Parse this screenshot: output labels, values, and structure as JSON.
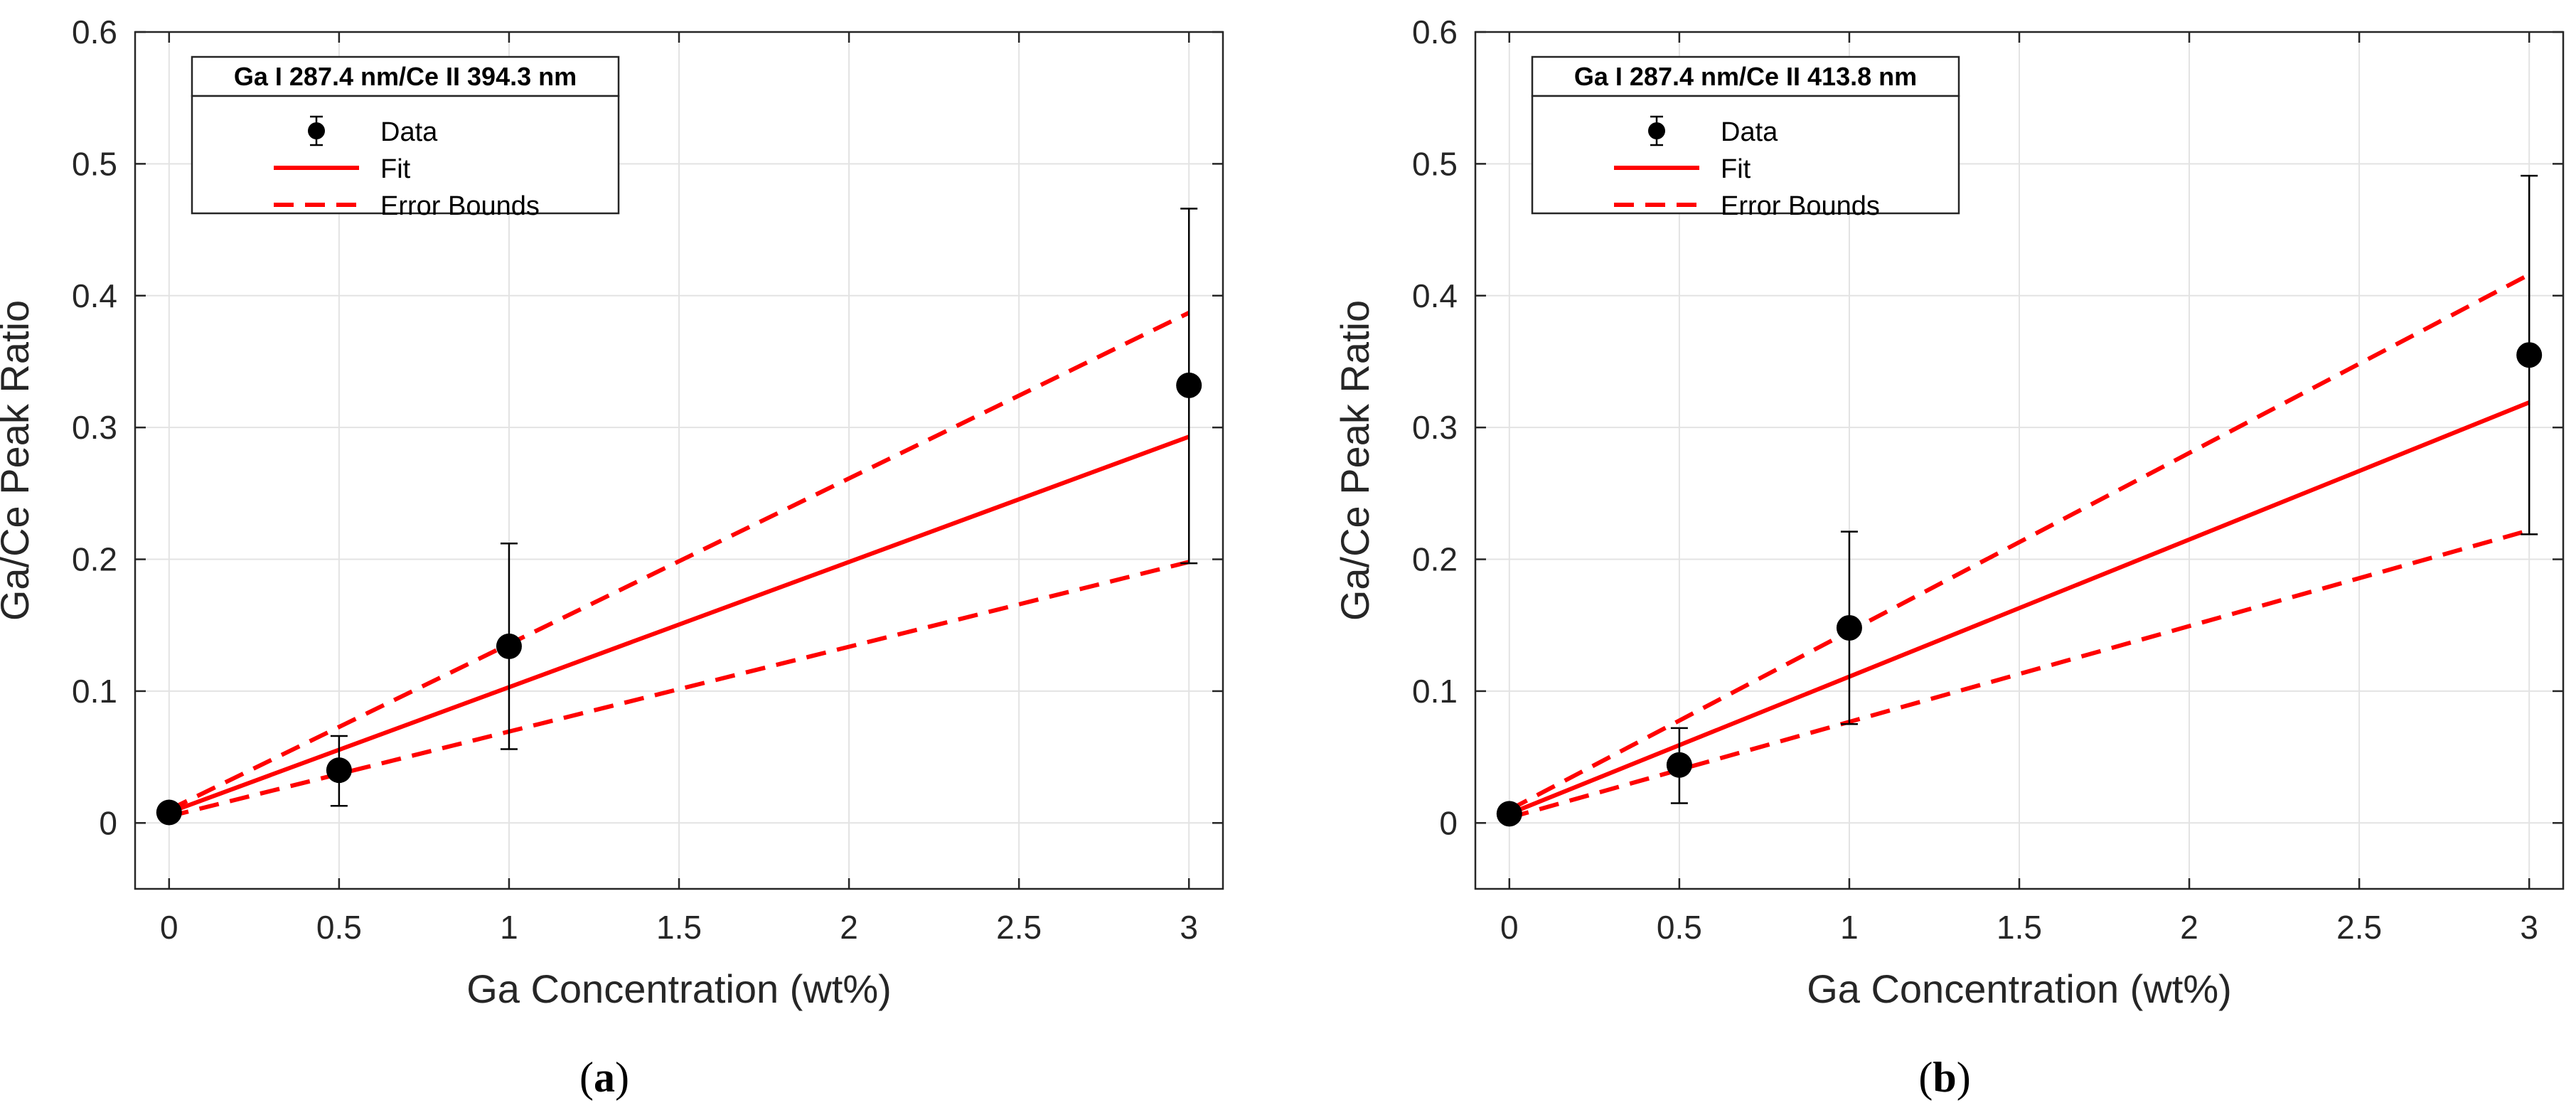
{
  "chart_data": [
    {
      "type": "scatter",
      "panel_label": "a",
      "title": "",
      "xlabel": "Ga Concentration (wt%)",
      "ylabel": "Ga/Ce Peak Ratio",
      "xlim": [
        -0.1,
        3.1
      ],
      "ylim": [
        -0.05,
        0.6
      ],
      "xticks": [
        0,
        0.5,
        1,
        1.5,
        2,
        2.5,
        3
      ],
      "xtick_labels": [
        "0",
        "0.5",
        "1",
        "1.5",
        "2",
        "2.5",
        "3"
      ],
      "yticks": [
        0,
        0.1,
        0.2,
        0.3,
        0.4,
        0.5,
        0.6
      ],
      "ytick_labels": [
        "0",
        "0.1",
        "0.2",
        "0.3",
        "0.4",
        "0.5",
        "0.6"
      ],
      "grid": true,
      "legend": {
        "title": "Ga I 287.4 nm/Ce II 394.3 nm",
        "location": "top-left",
        "entries": [
          "Data",
          "Fit",
          "Error Bounds"
        ]
      },
      "data_points": {
        "name": "Data",
        "x": [
          0,
          0.5,
          1,
          3
        ],
        "y": [
          0.008,
          0.04,
          0.134,
          0.332
        ],
        "err_low": [
          0.008,
          0.013,
          0.056,
          0.197
        ],
        "err_high": [
          0.008,
          0.066,
          0.212,
          0.466
        ]
      },
      "fit": {
        "name": "Fit",
        "x": [
          0,
          3
        ],
        "y": [
          0.008,
          0.293
        ]
      },
      "upper_bound": {
        "name": "Error Bounds",
        "x": [
          0,
          3
        ],
        "y": [
          0.01,
          0.387
        ]
      },
      "lower_bound": {
        "name": "Error Bounds",
        "x": [
          0,
          3
        ],
        "y": [
          0.005,
          0.198
        ]
      }
    },
    {
      "type": "scatter",
      "panel_label": "b",
      "title": "",
      "xlabel": "Ga Concentration (wt%)",
      "ylabel": "Ga/Ce Peak Ratio",
      "xlim": [
        -0.1,
        3.1
      ],
      "ylim": [
        -0.05,
        0.6
      ],
      "xticks": [
        0,
        0.5,
        1,
        1.5,
        2,
        2.5,
        3
      ],
      "xtick_labels": [
        "0",
        "0.5",
        "1",
        "1.5",
        "2",
        "2.5",
        "3"
      ],
      "yticks": [
        0,
        0.1,
        0.2,
        0.3,
        0.4,
        0.5,
        0.6
      ],
      "ytick_labels": [
        "0",
        "0.1",
        "0.2",
        "0.3",
        "0.4",
        "0.5",
        "0.6"
      ],
      "grid": true,
      "legend": {
        "title": "Ga I 287.4 nm/Ce II 413.8 nm",
        "location": "top-left",
        "entries": [
          "Data",
          "Fit",
          "Error Bounds"
        ]
      },
      "data_points": {
        "name": "Data",
        "x": [
          0,
          0.5,
          1,
          3
        ],
        "y": [
          0.007,
          0.044,
          0.148,
          0.355
        ],
        "err_low": [
          0.007,
          0.015,
          0.075,
          0.219
        ],
        "err_high": [
          0.007,
          0.072,
          0.221,
          0.491
        ]
      },
      "fit": {
        "name": "Fit",
        "x": [
          0,
          3
        ],
        "y": [
          0.007,
          0.319
        ]
      },
      "upper_bound": {
        "name": "Error Bounds",
        "x": [
          0,
          3
        ],
        "y": [
          0.01,
          0.416
        ]
      },
      "lower_bound": {
        "name": "Error Bounds",
        "x": [
          0,
          3
        ],
        "y": [
          0.004,
          0.222
        ]
      }
    }
  ],
  "colors": {
    "fit": "#ff0000",
    "data": "#000000",
    "grid": "#e3e3e3",
    "axis": "#262626"
  }
}
